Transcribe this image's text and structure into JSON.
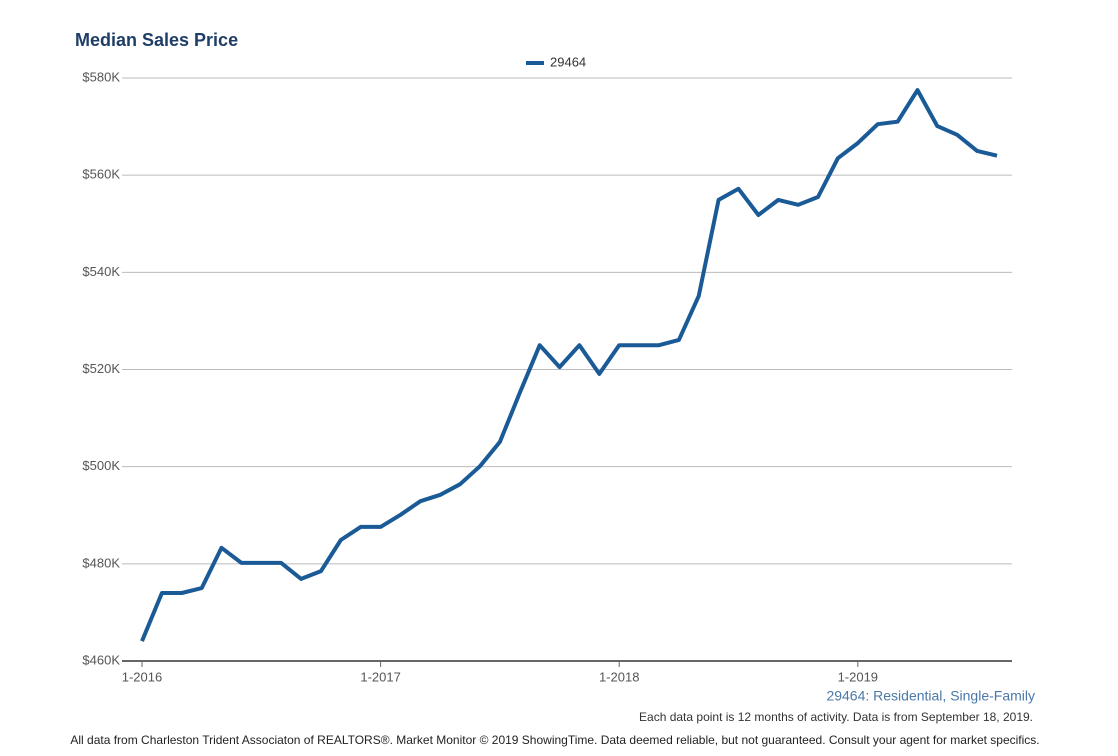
{
  "chart_data": {
    "type": "line",
    "title": "Median Sales Price",
    "categories": [
      "1-2016",
      null,
      null,
      null,
      null,
      null,
      null,
      null,
      null,
      null,
      null,
      null,
      "1-2017",
      null,
      null,
      null,
      null,
      null,
      null,
      null,
      null,
      null,
      null,
      null,
      "1-2018",
      null,
      null,
      null,
      null,
      null,
      null,
      null,
      null,
      null,
      null,
      null,
      "1-2019",
      null,
      null,
      null,
      null,
      null,
      null,
      null
    ],
    "series": [
      {
        "name": "29464",
        "color": "#1a5a96",
        "values": [
          464.1,
          474.0,
          474.0,
          475.0,
          483.3,
          480.2,
          480.2,
          480.2,
          476.9,
          478.5,
          484.9,
          487.6,
          487.6,
          490.1,
          492.9,
          494.2,
          496.4,
          500.1,
          505.1,
          515.2,
          525.0,
          520.5,
          525.0,
          519.1,
          525.0,
          525.0,
          525.0,
          526.1,
          535.1,
          554.9,
          557.2,
          551.8,
          554.9,
          553.9,
          555.5,
          563.5,
          566.6,
          570.5,
          571.0,
          577.5,
          570.1,
          568.3,
          565.0,
          564.0
        ]
      }
    ],
    "ylim": [
      460,
      580
    ],
    "yticks": [
      {
        "value": 460,
        "label": "$460K"
      },
      {
        "value": 480,
        "label": "$480K"
      },
      {
        "value": 500,
        "label": "$500K"
      },
      {
        "value": 520,
        "label": "$520K"
      },
      {
        "value": 540,
        "label": "$540K"
      },
      {
        "value": 560,
        "label": "$560K"
      },
      {
        "value": 580,
        "label": "$580K"
      }
    ],
    "grid": true,
    "legend": "top",
    "annotations": [
      "29464: Residential, Single-Family",
      "Each data point is 12 months of activity. Data is from September 18, 2019.",
      "All data from Charleston Trident Associaton of REALTORS®. Market Monitor © 2019 ShowingTime. Data deemed reliable, but not guaranteed. Consult your agent for market specifics."
    ]
  }
}
